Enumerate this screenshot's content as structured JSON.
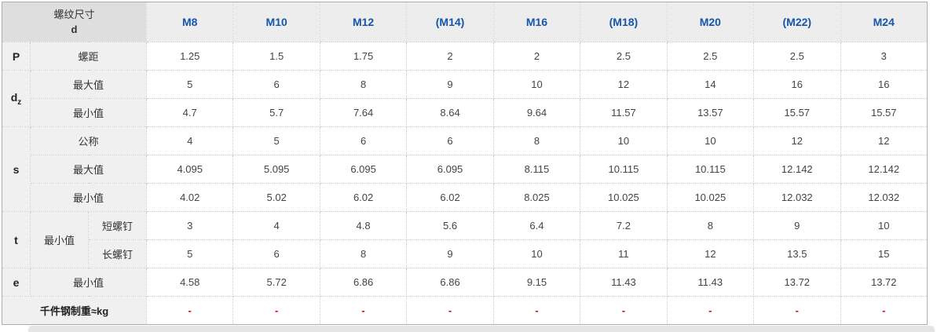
{
  "table": {
    "corner": {
      "line1": "螺纹尺寸",
      "line2": "d"
    },
    "columns": [
      "M8",
      "M10",
      "M12",
      "(M14)",
      "M16",
      "(M18)",
      "M20",
      "(M22)",
      "M24"
    ],
    "rows": [
      {
        "group": {
          "text": "P",
          "rowspan": 1
        },
        "labels": [
          {
            "text": "螺距",
            "colspan": 2
          }
        ],
        "values": [
          "1.25",
          "1.5",
          "1.75",
          "2",
          "2",
          "2.5",
          "2.5",
          "2.5",
          "3"
        ]
      },
      {
        "group": {
          "text": "d",
          "sub": "z",
          "rowspan": 2
        },
        "labels": [
          {
            "text": "最大值",
            "colspan": 2
          }
        ],
        "values": [
          "5",
          "6",
          "8",
          "9",
          "10",
          "12",
          "14",
          "16",
          "16"
        ]
      },
      {
        "labels": [
          {
            "text": "最小值",
            "colspan": 2
          }
        ],
        "values": [
          "4.7",
          "5.7",
          "7.64",
          "8.64",
          "9.64",
          "11.57",
          "13.57",
          "15.57",
          "15.57"
        ]
      },
      {
        "group": {
          "text": "s",
          "rowspan": 3
        },
        "labels": [
          {
            "text": "公称",
            "colspan": 2
          }
        ],
        "values": [
          "4",
          "5",
          "6",
          "6",
          "8",
          "10",
          "10",
          "12",
          "12"
        ]
      },
      {
        "labels": [
          {
            "text": "最大值",
            "colspan": 2
          }
        ],
        "values": [
          "4.095",
          "5.095",
          "6.095",
          "6.095",
          "8.115",
          "10.115",
          "10.115",
          "12.142",
          "12.142"
        ]
      },
      {
        "labels": [
          {
            "text": "最小值",
            "colspan": 2
          }
        ],
        "values": [
          "4.02",
          "5.02",
          "6.02",
          "6.02",
          "8.025",
          "10.025",
          "10.025",
          "12.032",
          "12.032"
        ]
      },
      {
        "group": {
          "text": "t",
          "rowspan": 2
        },
        "labels": [
          {
            "text": "最小值",
            "rowspan": 2
          },
          {
            "text": "短螺钉"
          }
        ],
        "values": [
          "3",
          "4",
          "4.8",
          "5.6",
          "6.4",
          "7.2",
          "8",
          "9",
          "10"
        ]
      },
      {
        "labels": [
          {
            "text": "长螺钉"
          }
        ],
        "values": [
          "5",
          "6",
          "8",
          "9",
          "10",
          "11",
          "12",
          "13.5",
          "15"
        ]
      },
      {
        "group": {
          "text": "e",
          "rowspan": 1
        },
        "labels": [
          {
            "text": "最小值",
            "colspan": 2
          }
        ],
        "values": [
          "4.58",
          "5.72",
          "6.86",
          "6.86",
          "9.15",
          "11.43",
          "11.43",
          "13.72",
          "13.72"
        ]
      },
      {
        "labels": [
          {
            "text": "千件钢制重≈kg",
            "colspan": 3,
            "bold": true
          }
        ],
        "values": [
          "-",
          "-",
          "-",
          "-",
          "-",
          "-",
          "-",
          "-",
          "-"
        ],
        "red": true
      }
    ]
  },
  "colors": {
    "column_header_text": "#1556ad",
    "red_dash": "#dd0000",
    "header_bg": "#ededed",
    "corner_bg": "#dedede",
    "label_bg": "#f0f0f0",
    "inner_border": "#c9c9c9",
    "outer_border": "#adadad",
    "body_text": "#444444"
  }
}
